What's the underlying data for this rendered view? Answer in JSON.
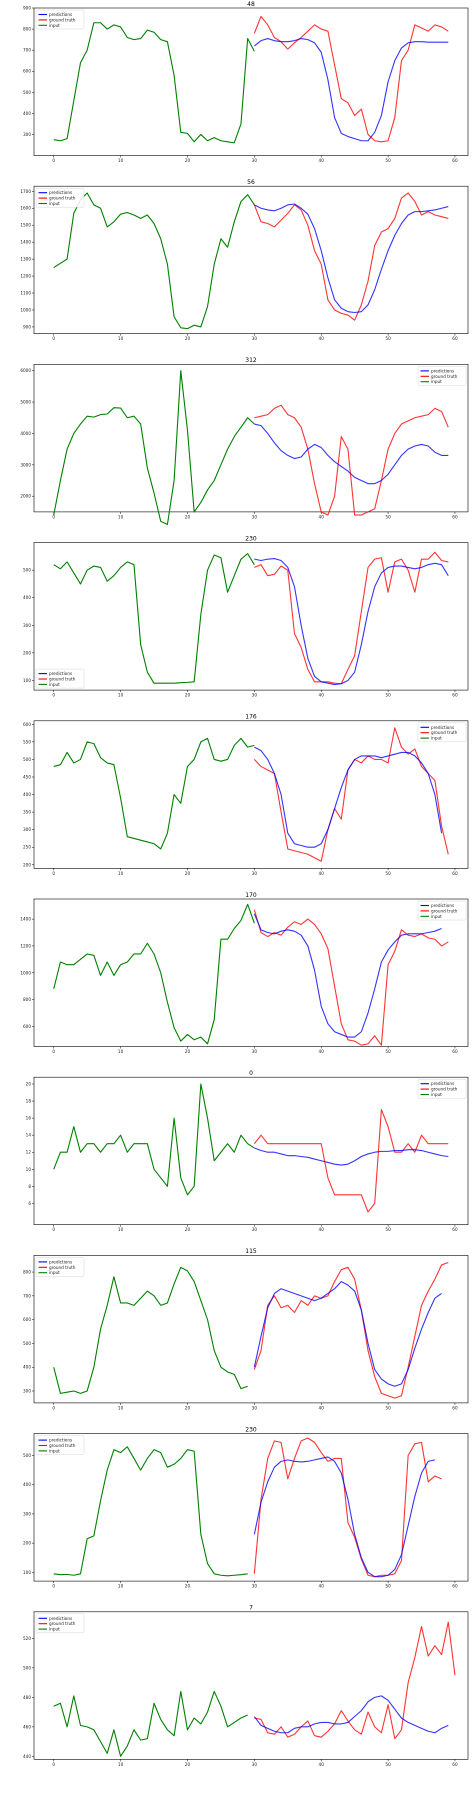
{
  "figure": {
    "x_ticks": [
      0,
      10,
      20,
      30,
      40,
      50,
      60
    ],
    "x_range": [
      -2.95,
      61.95
    ],
    "legend_labels": {
      "predictions": "predictions",
      "ground_truth": "ground truth",
      "input": "input"
    },
    "colors": {
      "predictions": "#0000ff",
      "ground_truth": "#ff0000",
      "input": "#008000"
    }
  },
  "chart_data": [
    {
      "type": "line",
      "title": "48",
      "ylim": [
        200,
        900
      ],
      "yticks": [
        300,
        400,
        500,
        600,
        700,
        800,
        900
      ],
      "legend": "top-left",
      "input": [
        275,
        270,
        280,
        460,
        640,
        700,
        830,
        830,
        800,
        820,
        810,
        760,
        750,
        755,
        795,
        785,
        750,
        740,
        580,
        310,
        305,
        265,
        300,
        270,
        285,
        270,
        265,
        260,
        350,
        755,
        695
      ],
      "predictions": [
        720,
        745,
        755,
        745,
        740,
        740,
        745,
        755,
        750,
        735,
        690,
        560,
        380,
        305,
        290,
        280,
        270,
        270,
        310,
        390,
        550,
        650,
        710,
        735,
        740,
        740,
        738,
        738,
        738,
        738
      ],
      "ground_truth": [
        780,
        860,
        820,
        760,
        740,
        705,
        735,
        760,
        790,
        820,
        800,
        790,
        630,
        470,
        450,
        390,
        420,
        300,
        270,
        265,
        270,
        380,
        650,
        700,
        820,
        805,
        790,
        820,
        810,
        790
      ]
    },
    {
      "type": "line",
      "title": "56",
      "ylim": [
        860,
        1730
      ],
      "yticks": [
        900,
        1000,
        1100,
        1200,
        1300,
        1400,
        1500,
        1600,
        1700
      ],
      "legend": "top-left",
      "input": [
        1250,
        1275,
        1300,
        1570,
        1650,
        1690,
        1620,
        1600,
        1490,
        1520,
        1565,
        1575,
        1560,
        1540,
        1560,
        1510,
        1420,
        1270,
        960,
        895,
        890,
        910,
        900,
        1020,
        1270,
        1420,
        1370,
        1520,
        1640,
        1680,
        1620
      ],
      "predictions": [
        1620,
        1600,
        1590,
        1585,
        1600,
        1620,
        1625,
        1600,
        1565,
        1480,
        1350,
        1190,
        1060,
        1010,
        990,
        985,
        990,
        1030,
        1120,
        1240,
        1350,
        1440,
        1510,
        1560,
        1580,
        1580,
        1585,
        1590,
        1600,
        1610
      ],
      "ground_truth": [
        1620,
        1520,
        1510,
        1490,
        1530,
        1570,
        1620,
        1590,
        1500,
        1350,
        1270,
        1060,
        1000,
        980,
        970,
        940,
        1030,
        1170,
        1380,
        1460,
        1480,
        1540,
        1660,
        1690,
        1640,
        1560,
        1580,
        1560,
        1550,
        1540
      ]
    },
    {
      "type": "line",
      "title": "312",
      "ylim": [
        1500,
        6200
      ],
      "yticks": [
        2000,
        3000,
        4000,
        5000,
        6000
      ],
      "legend": "top-right",
      "input": [
        1400,
        2500,
        3500,
        4000,
        4300,
        4550,
        4520,
        4600,
        4620,
        4820,
        4810,
        4500,
        4550,
        4300,
        2900,
        2100,
        1200,
        1100,
        2500,
        6000,
        4100,
        1500,
        1800,
        2200,
        2500,
        3000,
        3500,
        3900,
        4200,
        4500,
        4300
      ],
      "predictions": [
        4300,
        4250,
        4000,
        3700,
        3450,
        3300,
        3200,
        3250,
        3500,
        3650,
        3550,
        3300,
        3100,
        2950,
        2800,
        2600,
        2500,
        2400,
        2400,
        2500,
        2700,
        3000,
        3300,
        3500,
        3600,
        3650,
        3600,
        3400,
        3300,
        3300
      ],
      "ground_truth": [
        4500,
        4550,
        4600,
        4800,
        4900,
        4600,
        4500,
        4200,
        3500,
        2400,
        1500,
        1400,
        2000,
        3900,
        3500,
        1400,
        1400,
        1500,
        1600,
        2500,
        3500,
        4000,
        4300,
        4400,
        4500,
        4550,
        4600,
        4800,
        4700,
        4200
      ]
    },
    {
      "type": "line",
      "title": "230",
      "ylim": [
        65,
        600
      ],
      "yticks": [
        100,
        200,
        300,
        400,
        500
      ],
      "legend": "bottom-left",
      "input": [
        520,
        505,
        530,
        490,
        450,
        500,
        515,
        510,
        460,
        480,
        510,
        530,
        520,
        230,
        130,
        90,
        90,
        90,
        90,
        92,
        93,
        95,
        340,
        500,
        555,
        545,
        420,
        480,
        540,
        560,
        520
      ],
      "predictions": [
        540,
        535,
        540,
        542,
        535,
        510,
        440,
        300,
        180,
        115,
        95,
        90,
        85,
        88,
        100,
        130,
        230,
        350,
        440,
        490,
        510,
        515,
        515,
        510,
        505,
        510,
        520,
        525,
        520,
        480
      ],
      "ground_truth": [
        510,
        520,
        480,
        485,
        515,
        500,
        270,
        220,
        140,
        95,
        95,
        95,
        90,
        88,
        140,
        190,
        350,
        510,
        540,
        545,
        420,
        530,
        540,
        500,
        420,
        540,
        540,
        565,
        535,
        530
      ]
    },
    {
      "type": "line",
      "title": "176",
      "ylim": [
        190,
        610
      ],
      "yticks": [
        200,
        250,
        300,
        350,
        400,
        450,
        500,
        550,
        600
      ],
      "legend": "top-right",
      "input": [
        480,
        485,
        520,
        490,
        500,
        550,
        545,
        505,
        490,
        485,
        390,
        280,
        275,
        270,
        265,
        260,
        245,
        290,
        400,
        375,
        480,
        500,
        550,
        560,
        500,
        495,
        500,
        540,
        560,
        535,
        540
      ],
      "predictions": [
        535,
        525,
        500,
        460,
        400,
        290,
        260,
        255,
        250,
        250,
        260,
        300,
        360,
        420,
        470,
        500,
        510,
        510,
        510,
        505,
        510,
        515,
        520,
        520,
        510,
        490,
        460,
        400,
        290
      ],
      "ground_truth": [
        500,
        480,
        470,
        460,
        350,
        245,
        240,
        235,
        230,
        220,
        210,
        300,
        360,
        330,
        470,
        500,
        490,
        510,
        500,
        500,
        490,
        590,
        535,
        515,
        530,
        480,
        460,
        440,
        310,
        230
      ]
    },
    {
      "type": "line",
      "title": "170",
      "ylim": [
        450,
        1550
      ],
      "yticks": [
        600,
        800,
        1000,
        1200,
        1400
      ],
      "legend": "top-right",
      "input": [
        880,
        1080,
        1060,
        1060,
        1100,
        1140,
        1130,
        980,
        1080,
        980,
        1060,
        1080,
        1140,
        1140,
        1220,
        1140,
        1000,
        780,
        590,
        490,
        540,
        500,
        520,
        470,
        650,
        1250,
        1250,
        1330,
        1390,
        1510,
        1370
      ],
      "predictions": [
        1440,
        1320,
        1300,
        1290,
        1310,
        1320,
        1310,
        1280,
        1200,
        1020,
        750,
        620,
        560,
        540,
        520,
        520,
        560,
        700,
        880,
        1080,
        1170,
        1230,
        1280,
        1290,
        1290,
        1290,
        1300,
        1310,
        1330
      ],
      "ground_truth": [
        1470,
        1300,
        1270,
        1300,
        1280,
        1340,
        1380,
        1360,
        1400,
        1360,
        1290,
        1180,
        900,
        620,
        500,
        490,
        460,
        470,
        530,
        460,
        1060,
        1160,
        1320,
        1280,
        1270,
        1290,
        1260,
        1250,
        1200,
        1230
      ]
    },
    {
      "type": "line",
      "title": "0",
      "ylim": [
        3.5,
        20.8
      ],
      "yticks": [
        6,
        8,
        10,
        12,
        14,
        16,
        18,
        20
      ],
      "legend": "top-right",
      "input": [
        10,
        12,
        12,
        15,
        12,
        13,
        13,
        12,
        13,
        13,
        14,
        12,
        13,
        13,
        13,
        10,
        9,
        8,
        16,
        9,
        7,
        8,
        20,
        16,
        11,
        12,
        13,
        12,
        14,
        13,
        12.5
      ],
      "predictions": [
        12.5,
        12.2,
        12,
        12,
        11.8,
        11.6,
        11.6,
        11.5,
        11.4,
        11.2,
        11.0,
        10.8,
        10.6,
        10.5,
        10.6,
        11.0,
        11.5,
        11.8,
        12.0,
        12.1,
        12.1,
        12.2,
        12.2,
        12.3,
        12.3,
        12.2,
        12.0,
        11.8,
        11.6,
        11.5
      ],
      "ground_truth": [
        13,
        14,
        13,
        13,
        13,
        13,
        13,
        13,
        13,
        13,
        13,
        9,
        7,
        7,
        7,
        7,
        7,
        5,
        6,
        17,
        15,
        12,
        12,
        13,
        12,
        14,
        13,
        13,
        13,
        13
      ]
    },
    {
      "type": "line",
      "title": "115",
      "ylim": [
        250,
        870
      ],
      "yticks": [
        300,
        400,
        500,
        600,
        700,
        800
      ],
      "legend": "top-left",
      "input": [
        400,
        290,
        295,
        300,
        290,
        300,
        400,
        560,
        660,
        780,
        670,
        670,
        660,
        690,
        720,
        700,
        660,
        670,
        750,
        820,
        805,
        760,
        680,
        600,
        470,
        400,
        380,
        370,
        310,
        320
      ],
      "predictions": [
        400,
        530,
        650,
        710,
        730,
        720,
        710,
        700,
        690,
        680,
        690,
        710,
        730,
        760,
        745,
        720,
        640,
        500,
        390,
        350,
        330,
        320,
        330,
        390,
        480,
        560,
        630,
        690,
        710
      ],
      "ground_truth": [
        390,
        470,
        660,
        700,
        650,
        660,
        630,
        680,
        660,
        700,
        690,
        700,
        760,
        810,
        820,
        770,
        640,
        470,
        360,
        290,
        280,
        270,
        280,
        400,
        530,
        660,
        720,
        770,
        830,
        840
      ]
    },
    {
      "type": "line",
      "title": "230",
      "ylim": [
        70,
        575
      ],
      "yticks": [
        100,
        200,
        300,
        400,
        500
      ],
      "legend": "top-left",
      "input": [
        95,
        92,
        93,
        90,
        95,
        215,
        225,
        345,
        450,
        520,
        510,
        530,
        490,
        450,
        490,
        520,
        510,
        460,
        470,
        490,
        520,
        515,
        230,
        130,
        95,
        90,
        88,
        90,
        92,
        95
      ],
      "predictions": [
        230,
        340,
        410,
        460,
        480,
        485,
        480,
        478,
        480,
        485,
        490,
        495,
        480,
        440,
        350,
        230,
        150,
        100,
        85,
        85,
        90,
        110,
        160,
        260,
        360,
        440,
        480,
        485
      ],
      "ground_truth": [
        95,
        350,
        490,
        550,
        545,
        420,
        490,
        550,
        560,
        545,
        510,
        480,
        490,
        490,
        270,
        220,
        145,
        90,
        85,
        90,
        90,
        95,
        140,
        500,
        540,
        545,
        410,
        430,
        420
      ]
    },
    {
      "type": "line",
      "title": "7",
      "ylim": [
        438,
        538
      ],
      "yticks": [
        440,
        460,
        480,
        500,
        520
      ],
      "legend": "top-left",
      "input": [
        474,
        476,
        460,
        481,
        461,
        460,
        458,
        450,
        442,
        458,
        440,
        447,
        458,
        451,
        452,
        476,
        465,
        458,
        454,
        484,
        458,
        466,
        462,
        470,
        484,
        474,
        460,
        463,
        466,
        468
      ],
      "predictions": [
        467,
        461,
        459,
        457,
        456,
        456,
        459,
        460,
        460,
        462,
        463,
        463,
        462,
        462,
        463,
        467,
        471,
        477,
        480,
        481,
        478,
        472,
        466,
        463,
        461,
        459,
        457,
        456,
        459,
        461
      ],
      "ground_truth": [
        466,
        465,
        456,
        455,
        460,
        453,
        455,
        460,
        464,
        454,
        453,
        457,
        462,
        471,
        464,
        458,
        455,
        470,
        460,
        456,
        475,
        452,
        458,
        490,
        507,
        528,
        508,
        515,
        509,
        531,
        495
      ]
    }
  ]
}
